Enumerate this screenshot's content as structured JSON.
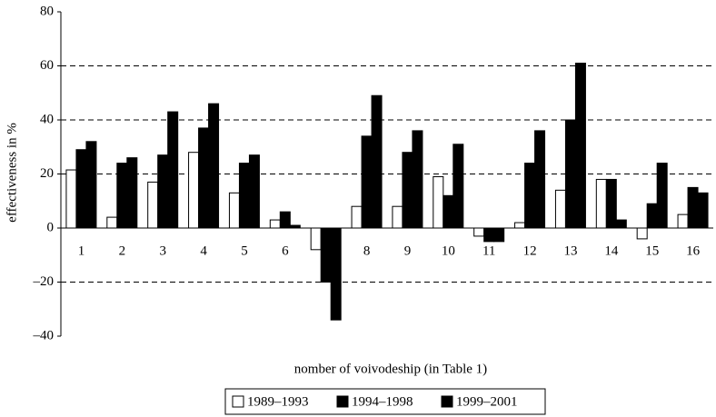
{
  "chart_data": {
    "type": "bar",
    "x_label": "nomber of voivodeship (in Table 1)",
    "y_label": "effectiveness in %",
    "categories": [
      "1",
      "2",
      "3",
      "4",
      "5",
      "6",
      null,
      "8",
      "9",
      "10",
      "11",
      "12",
      "13",
      "14",
      "15",
      "16"
    ],
    "series": [
      {
        "name": "1989–1993",
        "color": "#ffffff",
        "values": [
          21.5,
          4,
          17,
          28,
          13,
          3,
          -8,
          8,
          8,
          19,
          -3,
          2,
          14,
          18,
          -4,
          5
        ]
      },
      {
        "name": "1994–1998",
        "color": "#000000",
        "values": [
          29,
          24,
          27,
          37,
          24,
          6,
          -20,
          34,
          28,
          12,
          -5,
          24,
          40,
          18,
          9,
          15
        ]
      },
      {
        "name": "1999–2001",
        "color": "#000000",
        "values": [
          32,
          26,
          43,
          46,
          27,
          1,
          -34,
          49,
          36,
          31,
          -5,
          36,
          61,
          3,
          24,
          13
        ]
      }
    ],
    "ylim": [
      -40,
      80
    ],
    "yticks": [
      80,
      60,
      40,
      20,
      0,
      {
        "value": -20,
        "label": "–20"
      },
      {
        "value": -40,
        "label": "–40"
      }
    ],
    "grid": true
  }
}
